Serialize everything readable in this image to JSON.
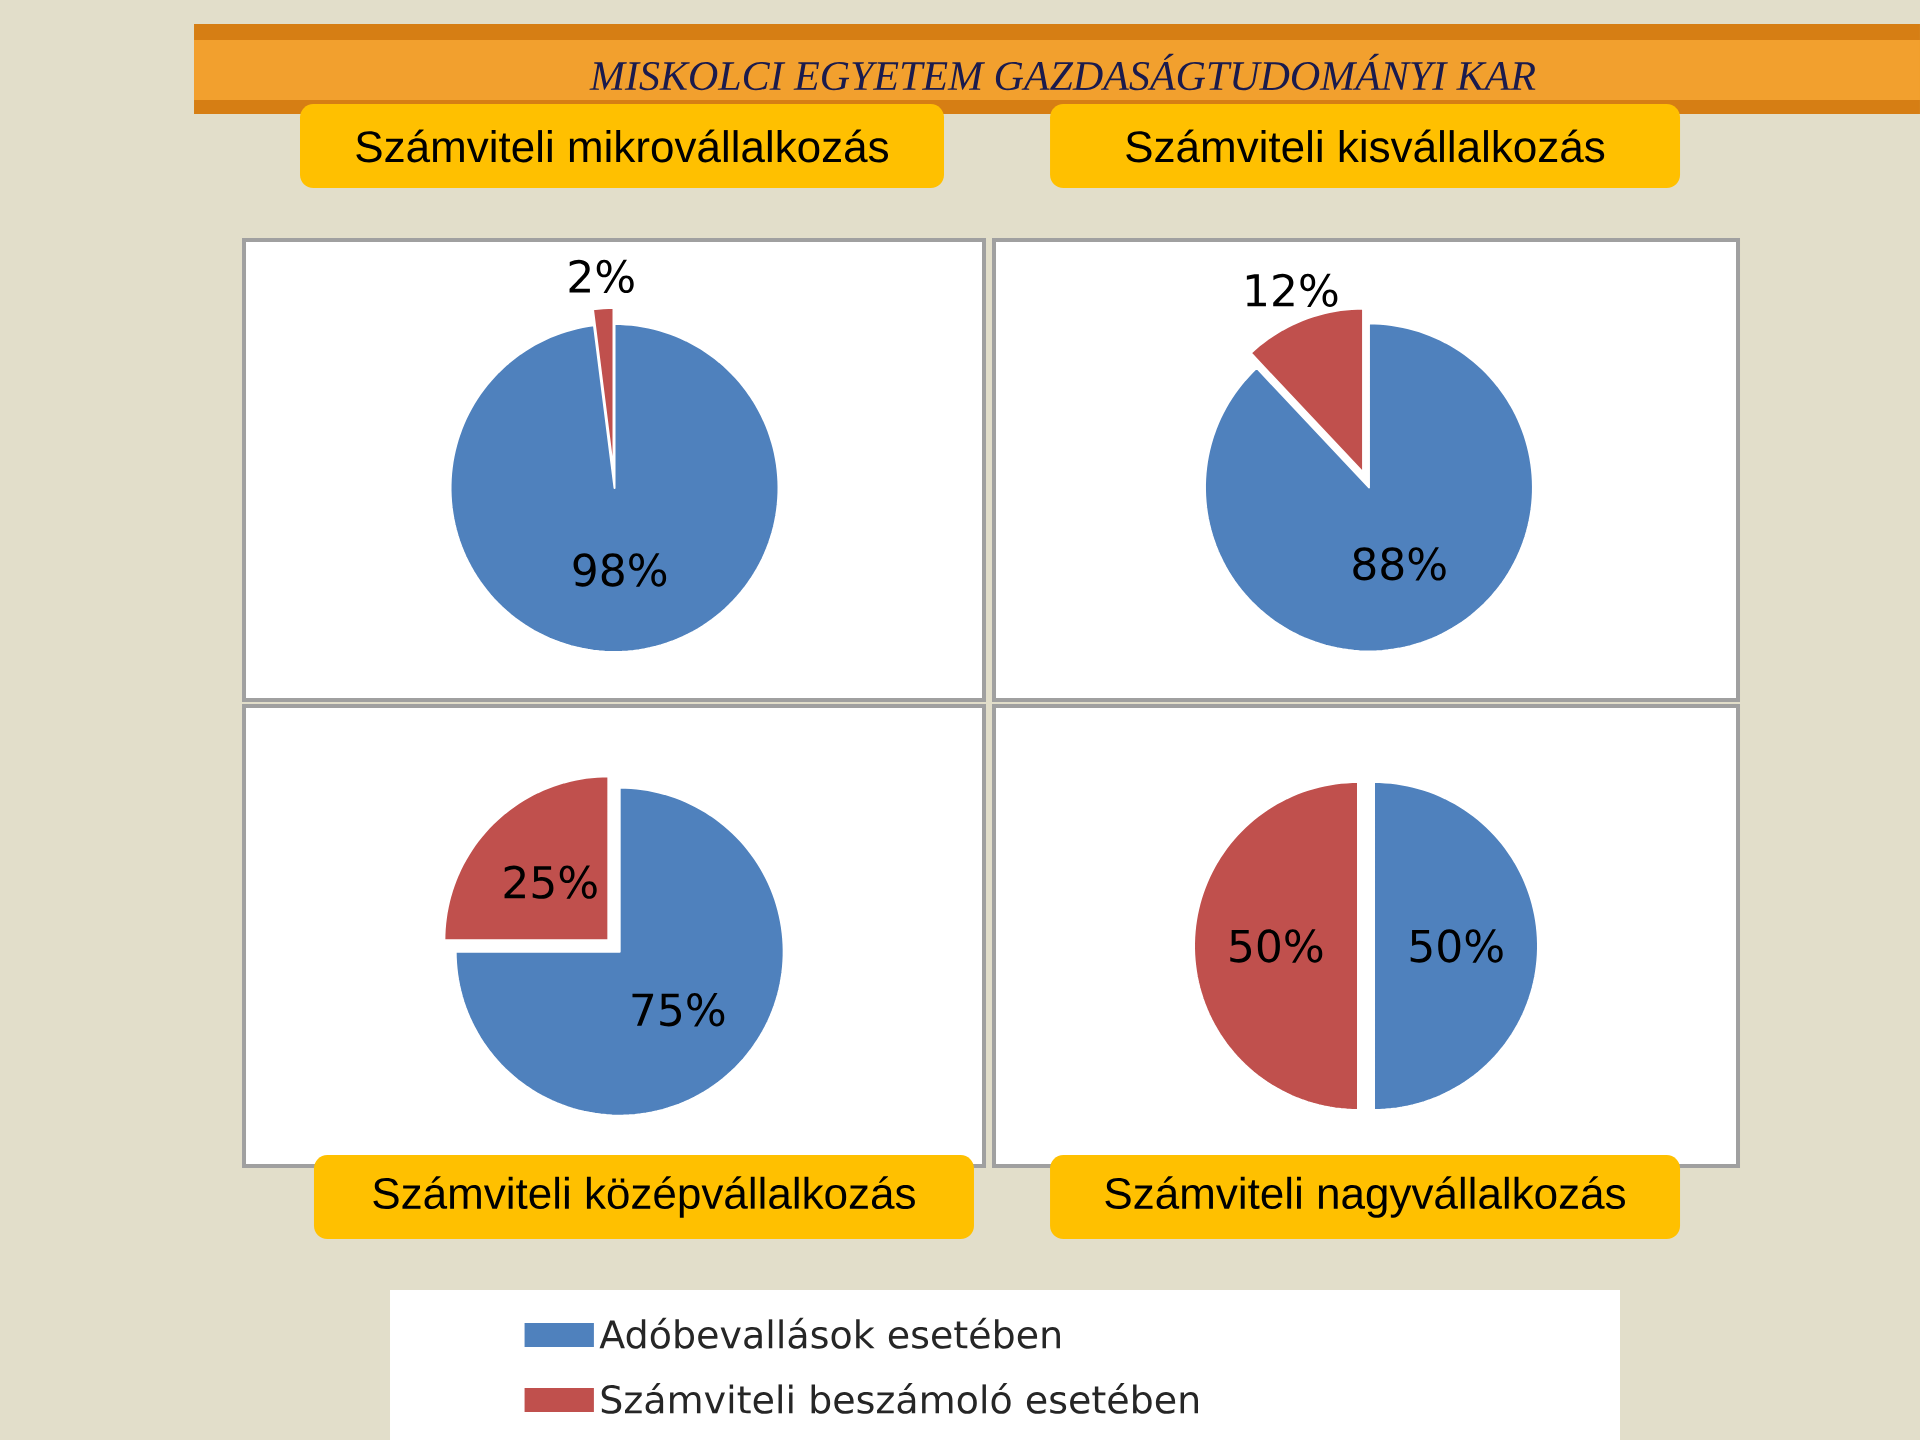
{
  "chart_data": [
    {
      "type": "pie",
      "title": "Számviteli mikrovállalkozás",
      "annotations": [
        "MISKOLCI EGYETEM GAZDASÁGTUDOMÁNYI KAR"
      ],
      "categories": [
        "Adóbevallások esetében",
        "Számviteli beszámoló esetében"
      ],
      "values": [
        98,
        2
      ],
      "value_labels": [
        "98%",
        "2%"
      ],
      "colors": [
        "#4f81bd",
        "#c0504d"
      ],
      "legend": "bottom"
    },
    {
      "type": "pie",
      "title": "Számviteli kisvállalkozás",
      "categories": [
        null,
        null
      ],
      "values": [
        88,
        12
      ],
      "value_labels": [
        "88%",
        "12%"
      ],
      "colors": [
        "#4f81bd",
        "#c0504d"
      ]
    },
    {
      "type": "pie",
      "title": "Számviteli középvállalkozás",
      "categories": [
        null,
        null
      ],
      "values": [
        75,
        25
      ],
      "value_labels": [
        "75%",
        "25%"
      ],
      "colors": [
        "#4f81bd",
        "#c0504d"
      ]
    },
    {
      "type": "pie",
      "title": "Számviteli nagyvállalkozás",
      "categories": [
        null,
        null
      ],
      "values": [
        50,
        50
      ],
      "value_labels": [
        "50%",
        "50%"
      ],
      "colors": [
        "#4f81bd",
        "#c0504d"
      ]
    }
  ]
}
